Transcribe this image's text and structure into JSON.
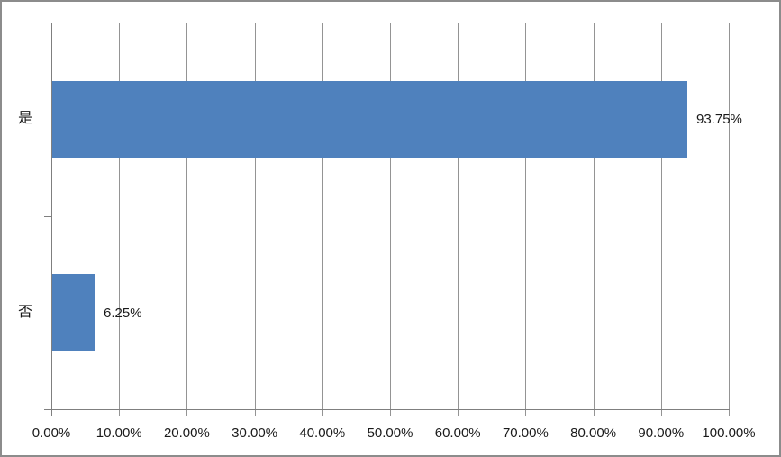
{
  "chart_data": {
    "type": "bar",
    "orientation": "horizontal",
    "title": "",
    "xlabel": "",
    "ylabel": "",
    "categories": [
      "是",
      "否"
    ],
    "values": [
      93.75,
      6.25
    ],
    "data_labels": [
      "93.75%",
      "6.25%"
    ],
    "x_ticks": [
      "0.00%",
      "10.00%",
      "20.00%",
      "30.00%",
      "40.00%",
      "50.00%",
      "60.00%",
      "70.00%",
      "80.00%",
      "90.00%",
      "100.00%"
    ],
    "x_tick_values": [
      0,
      10,
      20,
      30,
      40,
      50,
      60,
      70,
      80,
      90,
      100
    ],
    "xlim": [
      0,
      100
    ],
    "grid": true,
    "legend": false,
    "colors": {
      "bar": "#4F81BD",
      "text": "#1A1A1A",
      "gridline": "#949494",
      "axis": "#7F7F7F",
      "frame_border": "#8C8C8C",
      "background": "#FFFFFF"
    }
  }
}
